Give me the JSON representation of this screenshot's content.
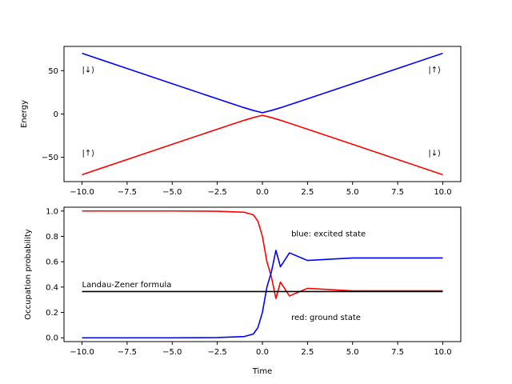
{
  "chart_data": [
    {
      "type": "line",
      "ylabel": "Energy",
      "xlim": [
        -11,
        11
      ],
      "ylim": [
        -78,
        78
      ],
      "xticks": [
        -10,
        -7.5,
        -5,
        -2.5,
        0,
        2.5,
        5,
        7.5,
        10
      ],
      "xtick_labels": [
        "−10.0",
        "−7.5",
        "−5.0",
        "−2.5",
        "0.0",
        "2.5",
        "5.0",
        "7.5",
        "10.0"
      ],
      "yticks": [
        -50,
        0,
        50
      ],
      "ytick_labels": [
        "−50",
        "0",
        "50"
      ],
      "series": [
        {
          "color": "#0000ff",
          "formula": "upper adiabatic energy",
          "x": [
            -10,
            -7.5,
            -5,
            -2.5,
            -1,
            -0.5,
            0,
            0.5,
            1,
            2.5,
            5,
            7.5,
            10
          ],
          "y": [
            70,
            52.5,
            35,
            17.5,
            7.2,
            4.1,
            1.5,
            4.1,
            7.2,
            17.5,
            35,
            52.5,
            70
          ]
        },
        {
          "color": "#ff0000",
          "formula": "lower adiabatic energy",
          "x": [
            -10,
            -7.5,
            -5,
            -2.5,
            -1,
            -0.5,
            0,
            0.5,
            1,
            2.5,
            5,
            7.5,
            10
          ],
          "y": [
            -70,
            -52.5,
            -35,
            -17.5,
            -7.2,
            -4.1,
            -1.5,
            -4.1,
            -7.2,
            -17.5,
            -35,
            -52.5,
            -70
          ]
        }
      ],
      "annotations": [
        {
          "text": "|↓⟩",
          "x": -10,
          "y": 48
        },
        {
          "text": "|↑⟩",
          "x": 9.2,
          "y": 48
        },
        {
          "text": "|↑⟩",
          "x": -10,
          "y": -48
        },
        {
          "text": "|↓⟩",
          "x": 9.2,
          "y": -48
        }
      ]
    },
    {
      "type": "line",
      "xlabel": "Time",
      "ylabel": "Occupation probability",
      "xlim": [
        -11,
        11
      ],
      "ylim": [
        -0.03,
        1.03
      ],
      "xticks": [
        -10,
        -7.5,
        -5,
        -2.5,
        0,
        2.5,
        5,
        7.5,
        10
      ],
      "xtick_labels": [
        "−10.0",
        "−7.5",
        "−5.0",
        "−2.5",
        "0.0",
        "2.5",
        "5.0",
        "7.5",
        "10.0"
      ],
      "yticks": [
        0,
        0.2,
        0.4,
        0.6,
        0.8,
        1.0
      ],
      "ytick_labels": [
        "0.0",
        "0.2",
        "0.4",
        "0.6",
        "0.8",
        "1.0"
      ],
      "series": [
        {
          "color": "#ff0000",
          "formula": "ground state occupation",
          "x": [
            -10,
            -5,
            -2.5,
            -1,
            -0.5,
            -0.25,
            0,
            0.25,
            0.5,
            0.75,
            1,
            1.5,
            2.5,
            5,
            10
          ],
          "y": [
            1.0,
            1.0,
            0.998,
            0.99,
            0.97,
            0.92,
            0.8,
            0.6,
            0.48,
            0.31,
            0.44,
            0.33,
            0.39,
            0.37,
            0.37
          ]
        },
        {
          "color": "#0000ff",
          "formula": "excited state occupation",
          "x": [
            -10,
            -5,
            -2.5,
            -1,
            -0.5,
            -0.25,
            0,
            0.25,
            0.5,
            0.75,
            1,
            1.5,
            2.5,
            5,
            10
          ],
          "y": [
            0.0,
            0.0,
            0.002,
            0.01,
            0.03,
            0.08,
            0.2,
            0.4,
            0.52,
            0.69,
            0.56,
            0.67,
            0.61,
            0.63,
            0.63
          ]
        },
        {
          "color": "#000000",
          "formula": "Landau-Zener formula",
          "x": [
            -10,
            10
          ],
          "y": [
            0.365,
            0.365
          ]
        }
      ],
      "annotations": [
        {
          "text": "blue: excited state",
          "x": 1.6,
          "y": 0.8
        },
        {
          "text": "Landau-Zener formula",
          "x": -10,
          "y": 0.4
        },
        {
          "text": "red: ground state",
          "x": 1.6,
          "y": 0.14
        }
      ]
    }
  ]
}
